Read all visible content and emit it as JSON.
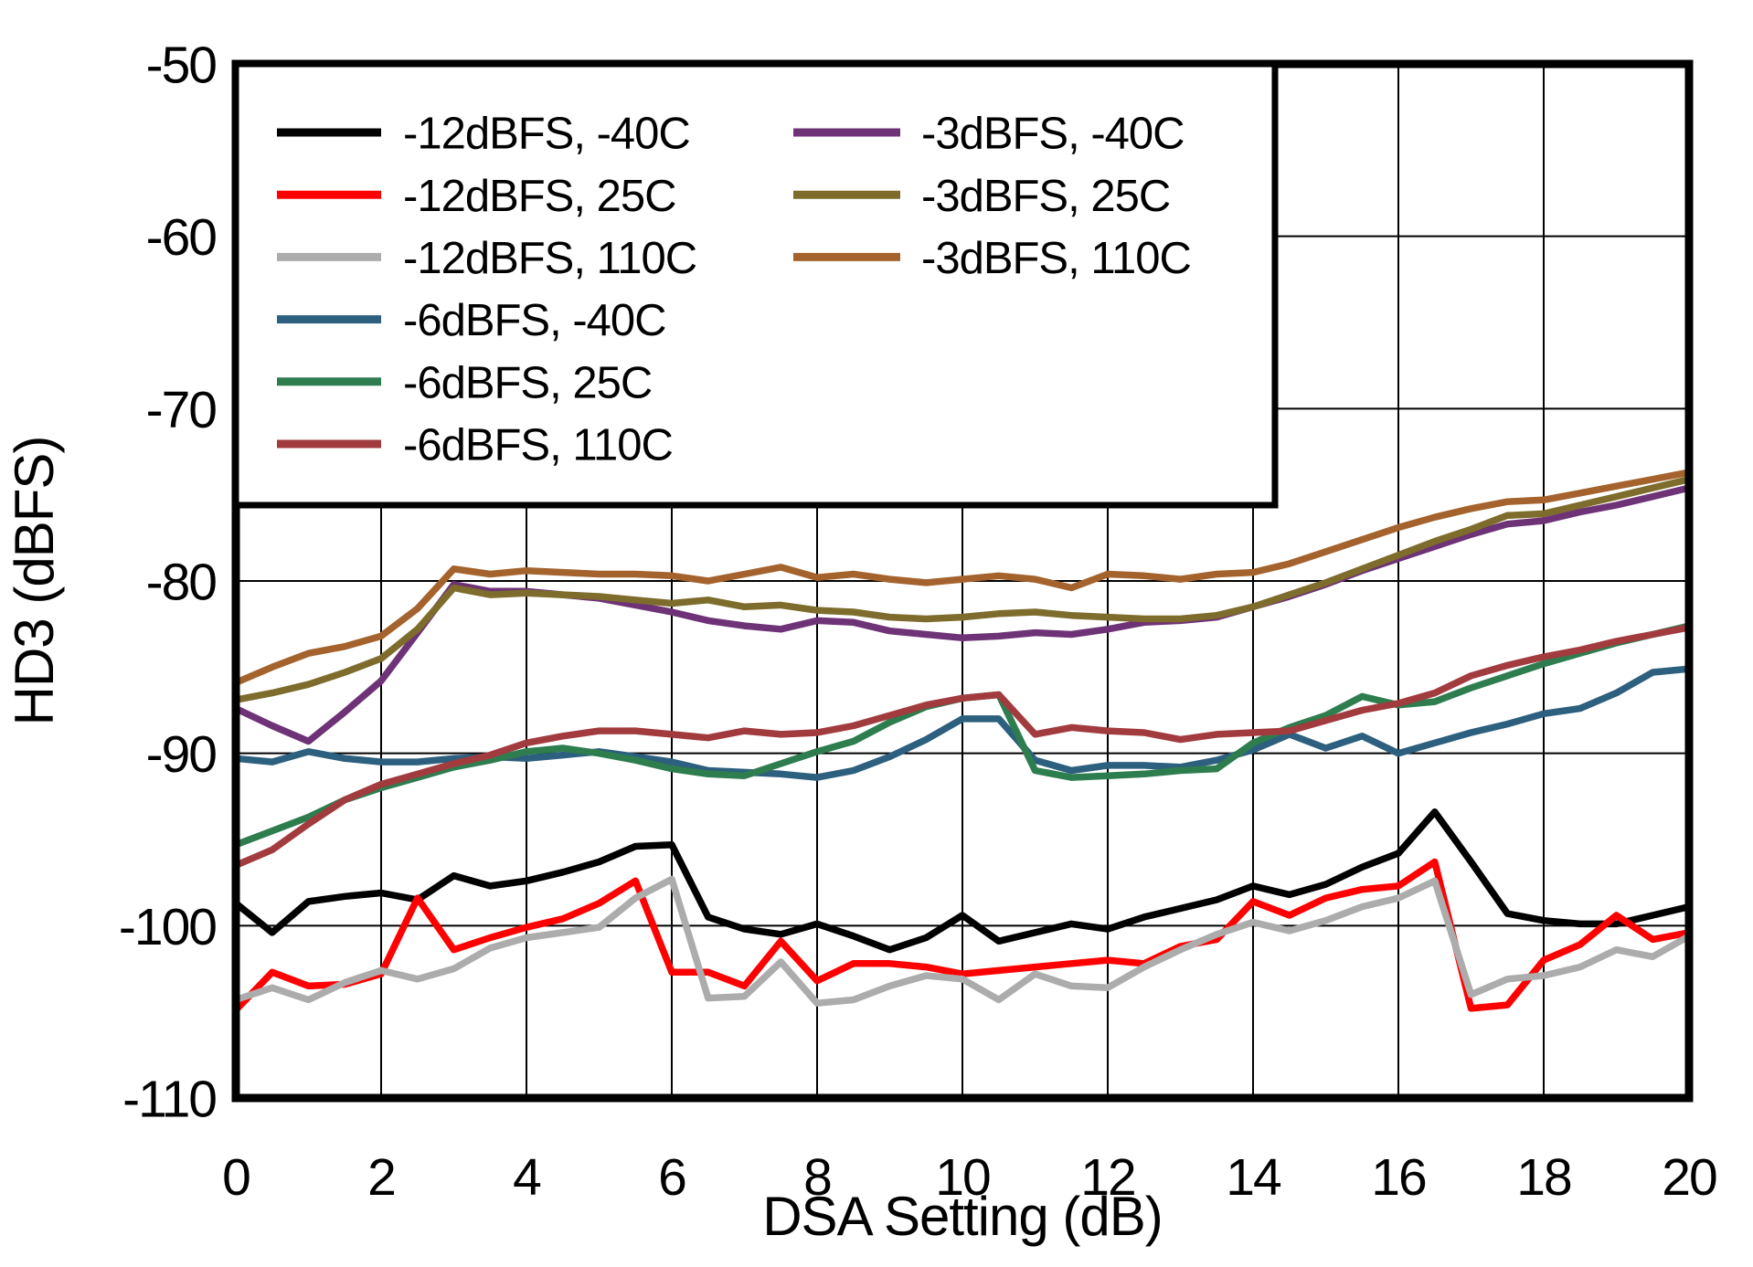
{
  "figure": {
    "background": "#ffffff",
    "frame_color": "#000000",
    "grid_color": "#000000"
  },
  "chart_data": {
    "type": "line",
    "title": "",
    "xlabel": "DSA Setting (dB)",
    "ylabel": "HD3 (dBFS)",
    "xlim": [
      0,
      20
    ],
    "ylim": [
      -110,
      -50
    ],
    "x_ticks": [
      0,
      2,
      4,
      6,
      8,
      10,
      12,
      14,
      16,
      18,
      20
    ],
    "y_ticks": [
      -50,
      -60,
      -70,
      -80,
      -90,
      -100,
      -110
    ],
    "grid": true,
    "legend_position": "top-left",
    "x_step": 0.5,
    "series": [
      {
        "name": "-12dBFS, -40C",
        "color": "#000000",
        "values": [
          -98.7,
          -100.4,
          -98.6,
          -98.3,
          -98.1,
          -98.5,
          -97.1,
          -97.7,
          -97.4,
          -96.9,
          -96.3,
          -95.4,
          -95.3,
          -99.5,
          -100.2,
          -100.5,
          -99.9,
          -100.6,
          -101.4,
          -100.7,
          -99.4,
          -100.9,
          -100.4,
          -99.9,
          -100.2,
          -99.5,
          -99.0,
          -98.5,
          -97.7,
          -98.2,
          -97.6,
          -96.6,
          -95.8,
          -93.4,
          -96.3,
          -99.3,
          -99.7,
          -99.9,
          -99.9,
          -99.4,
          -98.9
        ]
      },
      {
        "name": "-12dBFS, 25C",
        "color": "#FF0000",
        "values": [
          -104.9,
          -102.7,
          -103.5,
          -103.4,
          -102.8,
          -98.4,
          -101.4,
          -100.7,
          -100.1,
          -99.6,
          -98.7,
          -97.4,
          -102.7,
          -102.7,
          -103.5,
          -100.9,
          -103.2,
          -102.2,
          -102.2,
          -102.4,
          -102.8,
          -102.6,
          -102.4,
          -102.2,
          -102.0,
          -102.2,
          -101.2,
          -100.8,
          -98.6,
          -99.4,
          -98.4,
          -97.9,
          -97.7,
          -96.3,
          -104.8,
          -104.6,
          -102.0,
          -101.1,
          -99.4,
          -100.8,
          -100.4
        ]
      },
      {
        "name": "-12dBFS, 110C",
        "color": "#ACACAC",
        "values": [
          -104.3,
          -103.6,
          -104.3,
          -103.3,
          -102.6,
          -103.1,
          -102.5,
          -101.3,
          -100.7,
          -100.4,
          -100.1,
          -98.4,
          -97.3,
          -104.2,
          -104.1,
          -102.1,
          -104.5,
          -104.3,
          -103.5,
          -102.9,
          -103.1,
          -104.3,
          -102.8,
          -103.5,
          -103.6,
          -102.4,
          -101.4,
          -100.5,
          -99.8,
          -100.3,
          -99.7,
          -98.9,
          -98.4,
          -97.4,
          -104.0,
          -103.1,
          -102.9,
          -102.4,
          -101.4,
          -101.8,
          -100.6
        ]
      },
      {
        "name": "-6dBFS, -40C",
        "color": "#2D5F7E",
        "values": [
          -90.3,
          -90.5,
          -89.9,
          -90.3,
          -90.5,
          -90.5,
          -90.3,
          -90.2,
          -90.3,
          -90.1,
          -89.9,
          -90.2,
          -90.5,
          -91.0,
          -91.1,
          -91.2,
          -91.4,
          -91.0,
          -90.2,
          -89.2,
          -88.0,
          -88.0,
          -90.4,
          -91.0,
          -90.7,
          -90.7,
          -90.8,
          -90.4,
          -89.8,
          -88.9,
          -89.7,
          -89.0,
          -90.0,
          -89.4,
          -88.8,
          -88.3,
          -87.7,
          -87.4,
          -86.5,
          -85.3,
          -85.1
        ]
      },
      {
        "name": "-6dBFS, 25C",
        "color": "#2E7D4F",
        "values": [
          -95.3,
          -94.5,
          -93.7,
          -92.7,
          -92.0,
          -91.4,
          -90.8,
          -90.4,
          -89.9,
          -89.7,
          -90.0,
          -90.4,
          -90.9,
          -91.2,
          -91.3,
          -90.6,
          -89.9,
          -89.3,
          -88.2,
          -87.3,
          -86.8,
          -86.6,
          -91.0,
          -91.4,
          -91.3,
          -91.2,
          -91.0,
          -90.9,
          -89.4,
          -88.5,
          -87.8,
          -86.7,
          -87.2,
          -87.0,
          -86.2,
          -85.5,
          -84.8,
          -84.2,
          -83.6,
          -83.1,
          -82.6
        ]
      },
      {
        "name": "-6dBFS, 110C",
        "color": "#A23B3E",
        "values": [
          -96.5,
          -95.6,
          -94.1,
          -92.7,
          -91.8,
          -91.2,
          -90.6,
          -90.1,
          -89.4,
          -89.0,
          -88.7,
          -88.7,
          -88.9,
          -89.1,
          -88.7,
          -88.9,
          -88.8,
          -88.4,
          -87.8,
          -87.2,
          -86.8,
          -86.6,
          -88.9,
          -88.5,
          -88.7,
          -88.8,
          -89.2,
          -88.9,
          -88.8,
          -88.7,
          -88.1,
          -87.5,
          -87.1,
          -86.5,
          -85.5,
          -84.9,
          -84.4,
          -84.0,
          -83.5,
          -83.1,
          -82.7
        ]
      },
      {
        "name": "-3dBFS, -40C",
        "color": "#6E3277",
        "values": [
          -87.4,
          -88.4,
          -89.3,
          -87.6,
          -85.8,
          -83.0,
          -80.2,
          -80.6,
          -80.6,
          -80.8,
          -81.0,
          -81.4,
          -81.8,
          -82.3,
          -82.6,
          -82.8,
          -82.3,
          -82.4,
          -82.9,
          -83.1,
          -83.3,
          -83.2,
          -83.0,
          -83.1,
          -82.8,
          -82.4,
          -82.3,
          -82.1,
          -81.5,
          -80.9,
          -80.2,
          -79.4,
          -78.7,
          -78.0,
          -77.3,
          -76.7,
          -76.5,
          -76.0,
          -75.6,
          -75.1,
          -74.6
        ]
      },
      {
        "name": "-3dBFS, 25C",
        "color": "#7D6C2B",
        "values": [
          -86.9,
          -86.5,
          -86.0,
          -85.3,
          -84.5,
          -82.8,
          -80.4,
          -80.8,
          -80.7,
          -80.8,
          -80.9,
          -81.1,
          -81.3,
          -81.1,
          -81.5,
          -81.4,
          -81.7,
          -81.8,
          -82.1,
          -82.2,
          -82.1,
          -81.9,
          -81.8,
          -82.0,
          -82.1,
          -82.2,
          -82.2,
          -82.0,
          -81.5,
          -80.8,
          -80.1,
          -79.3,
          -78.5,
          -77.7,
          -77.0,
          -76.2,
          -76.1,
          -75.6,
          -75.1,
          -74.6,
          -74.1
        ]
      },
      {
        "name": "-3dBFS, 110C",
        "color": "#A4632D",
        "values": [
          -85.9,
          -85.0,
          -84.2,
          -83.8,
          -83.2,
          -81.6,
          -79.3,
          -79.6,
          -79.4,
          -79.5,
          -79.6,
          -79.6,
          -79.7,
          -80.0,
          -79.6,
          -79.2,
          -79.8,
          -79.6,
          -79.9,
          -80.1,
          -79.9,
          -79.7,
          -79.9,
          -80.4,
          -79.6,
          -79.7,
          -79.9,
          -79.6,
          -79.5,
          -79.0,
          -78.3,
          -77.6,
          -76.9,
          -76.3,
          -75.8,
          -75.4,
          -75.3,
          -74.9,
          -74.5,
          -74.1,
          -73.7
        ]
      }
    ]
  },
  "legend": {
    "columns": [
      {
        "items": [
          {
            "label": "-12dBFS, -40C",
            "color": "#000000"
          },
          {
            "label": "-12dBFS, 25C",
            "color": "#FF0000"
          },
          {
            "label": "-12dBFS, 110C",
            "color": "#ACACAC"
          },
          {
            "label": "-6dBFS, -40C",
            "color": "#2D5F7E"
          },
          {
            "label": "-6dBFS, 25C",
            "color": "#2E7D4F"
          },
          {
            "label": "-6dBFS, 110C",
            "color": "#A23B3E"
          }
        ]
      },
      {
        "items": [
          {
            "label": "-3dBFS, -40C",
            "color": "#6E3277"
          },
          {
            "label": "-3dBFS, 25C",
            "color": "#7D6C2B"
          },
          {
            "label": "-3dBFS, 110C",
            "color": "#A4632D"
          }
        ]
      }
    ]
  }
}
